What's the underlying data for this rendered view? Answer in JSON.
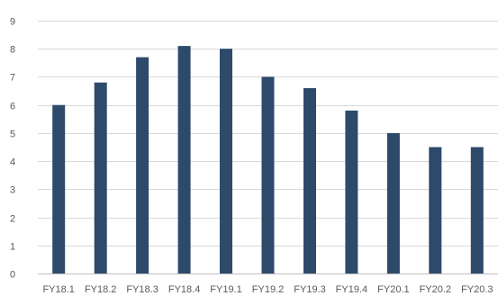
{
  "chart_data": {
    "type": "bar",
    "categories": [
      "FY18.1",
      "FY18.2",
      "FY18.3",
      "FY18.4",
      "FY19.1",
      "FY19.2",
      "FY19.3",
      "FY19.4",
      "FY20.1",
      "FY20.2",
      "FY20.3"
    ],
    "values": [
      6.0,
      6.8,
      7.7,
      8.1,
      8.0,
      7.0,
      6.6,
      5.8,
      5.0,
      4.5,
      4.5
    ],
    "title": "",
    "xlabel": "",
    "ylabel": "",
    "ylim": [
      0,
      9
    ],
    "yticks": [
      0,
      1,
      2,
      3,
      4,
      5,
      6,
      7,
      8,
      9
    ],
    "grid": true,
    "legend": "none",
    "bar_color": "#2e4a6b",
    "grid_color": "#d9d9d9",
    "text_color": "#595959"
  }
}
